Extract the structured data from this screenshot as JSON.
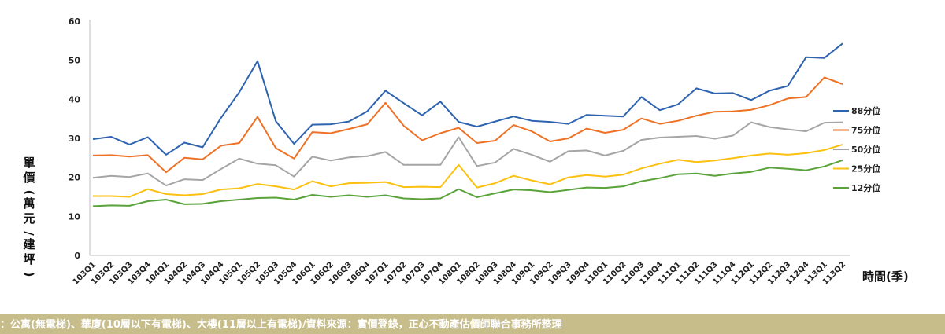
{
  "chart_data": {
    "type": "line",
    "title": "",
    "xlabel": "時間(季)",
    "ylabel": "單價(萬元/建坪)",
    "ylim": [
      0,
      60
    ],
    "yticks": [
      0,
      10,
      20,
      30,
      40,
      50,
      60
    ],
    "grid": false,
    "legend_position": "right",
    "categories": [
      "103Q1",
      "103Q2",
      "103Q3",
      "103Q4",
      "104Q1",
      "104Q2",
      "104Q3",
      "104Q4",
      "105Q1",
      "105Q2",
      "105Q3",
      "105Q4",
      "106Q1",
      "106Q2",
      "106Q3",
      "106Q4",
      "107Q1",
      "107Q2",
      "107Q3",
      "107Q4",
      "108Q1",
      "108Q2",
      "108Q3",
      "108Q4",
      "109Q1",
      "109Q2",
      "109Q3",
      "109Q4",
      "110Q1",
      "110Q2",
      "110Q3",
      "110Q4",
      "111Q1",
      "111Q2",
      "111Q3",
      "111Q4",
      "112Q1",
      "112Q2",
      "112Q3",
      "112Q4",
      "113Q1",
      "113Q2"
    ],
    "series": [
      {
        "name": "88分位",
        "color": "#2e63b0",
        "values": [
          29.8,
          30.4,
          28.4,
          30.3,
          25.8,
          28.9,
          27.7,
          35.2,
          41.8,
          49.8,
          34.4,
          28.6,
          33.5,
          33.6,
          34.3,
          36.9,
          42.2,
          39.0,
          35.9,
          39.4,
          34.2,
          33.0,
          34.3,
          35.6,
          34.5,
          34.2,
          33.7,
          36.0,
          35.8,
          35.6,
          40.6,
          37.2,
          38.7,
          42.8,
          41.5,
          41.6,
          39.8,
          42.2,
          43.4,
          50.8,
          50.6,
          54.3
        ]
      },
      {
        "name": "75分位",
        "color": "#ee7125",
        "values": [
          25.6,
          25.7,
          25.3,
          25.7,
          21.3,
          25.0,
          24.6,
          28.1,
          28.8,
          35.5,
          27.5,
          24.8,
          31.6,
          31.3,
          32.4,
          33.6,
          39.1,
          33.2,
          29.5,
          31.3,
          32.7,
          28.8,
          29.4,
          33.4,
          31.8,
          29.2,
          30.0,
          32.5,
          31.4,
          32.2,
          35.1,
          33.7,
          34.5,
          35.8,
          36.8,
          36.9,
          37.3,
          38.5,
          40.2,
          40.6,
          45.6,
          43.9
        ]
      },
      {
        "name": "50分位",
        "color": "#a5a5a5",
        "values": [
          19.9,
          20.4,
          20.1,
          21.0,
          17.9,
          19.5,
          19.3,
          22.1,
          24.8,
          23.5,
          23.1,
          20.2,
          25.3,
          24.3,
          25.1,
          25.4,
          26.5,
          23.2,
          23.2,
          23.2,
          30.3,
          22.9,
          23.8,
          27.3,
          25.8,
          24.0,
          26.7,
          26.9,
          25.6,
          26.8,
          29.6,
          30.2,
          30.4,
          30.6,
          29.9,
          30.7,
          34.1,
          32.9,
          32.3,
          31.8,
          34.0,
          34.1
        ]
      },
      {
        "name": "25分位",
        "color": "#fcc010",
        "values": [
          15.2,
          15.2,
          15.0,
          17.0,
          15.7,
          15.4,
          15.7,
          16.9,
          17.2,
          18.3,
          17.7,
          16.9,
          19.0,
          17.7,
          18.5,
          18.6,
          18.8,
          17.5,
          17.6,
          17.5,
          23.2,
          17.4,
          18.5,
          20.4,
          19.2,
          18.2,
          20.0,
          20.6,
          20.2,
          20.7,
          22.3,
          23.5,
          24.5,
          23.9,
          24.3,
          24.9,
          25.6,
          26.1,
          25.8,
          26.2,
          27.0,
          28.4
        ]
      },
      {
        "name": "12分位",
        "color": "#5aa33a",
        "values": [
          12.6,
          12.8,
          12.7,
          13.9,
          14.3,
          13.1,
          13.2,
          13.9,
          14.3,
          14.7,
          14.8,
          14.3,
          15.5,
          15.0,
          15.4,
          15.0,
          15.4,
          14.6,
          14.4,
          14.6,
          17.0,
          14.9,
          15.9,
          16.9,
          16.7,
          16.2,
          16.8,
          17.4,
          17.3,
          17.7,
          19.0,
          19.8,
          20.8,
          21.0,
          20.4,
          21.0,
          21.4,
          22.5,
          22.2,
          21.8,
          22.8,
          24.4
        ]
      }
    ]
  },
  "footer": {
    "note": "：公寓(無電梯)、華廈(10層以下有電梯)、大樓(11層以上有電梯)/資料來源：實價登錄，正心不動產估價師聯合事務所整理"
  }
}
